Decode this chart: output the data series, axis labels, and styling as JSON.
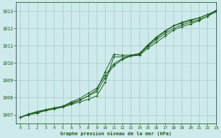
{
  "title": "Graphe pression niveau de la mer (hPa)",
  "background_color": "#ceeaea",
  "grid_color": "#aacece",
  "line_color": "#1a5c1a",
  "xlim": [
    -0.5,
    23
  ],
  "ylim": [
    1006.5,
    1013.5
  ],
  "xticks": [
    0,
    1,
    2,
    3,
    4,
    5,
    6,
    7,
    8,
    9,
    10,
    11,
    12,
    13,
    14,
    15,
    16,
    17,
    18,
    19,
    20,
    21,
    22,
    23
  ],
  "yticks": [
    1007,
    1008,
    1009,
    1010,
    1011,
    1012,
    1013
  ],
  "series": [
    [
      1006.85,
      1007.05,
      1007.15,
      1007.25,
      1007.35,
      1007.45,
      1007.6,
      1007.75,
      1007.9,
      1008.1,
      1008.9,
      1010.35,
      1010.35,
      1010.4,
      1010.45,
      1010.85,
      1011.2,
      1011.55,
      1011.9,
      1012.1,
      1012.25,
      1012.45,
      1012.7,
      1013.05
    ],
    [
      1006.85,
      1007.05,
      1007.15,
      1007.3,
      1007.4,
      1007.5,
      1007.7,
      1007.85,
      1008.1,
      1008.35,
      1009.15,
      1009.85,
      1010.2,
      1010.4,
      1010.5,
      1010.95,
      1011.35,
      1011.7,
      1012.0,
      1012.2,
      1012.35,
      1012.5,
      1012.7,
      1012.95
    ],
    [
      1006.85,
      1007.05,
      1007.2,
      1007.3,
      1007.4,
      1007.5,
      1007.75,
      1007.95,
      1008.25,
      1008.55,
      1009.3,
      1009.95,
      1010.25,
      1010.45,
      1010.55,
      1011.05,
      1011.5,
      1011.85,
      1012.15,
      1012.3,
      1012.45,
      1012.6,
      1012.8,
      1013.0
    ],
    [
      1006.85,
      1007.0,
      1007.1,
      1007.25,
      1007.35,
      1007.45,
      1007.65,
      1007.85,
      1008.1,
      1008.45,
      1009.5,
      1010.5,
      1010.45,
      1010.45,
      1010.5,
      1011.0,
      1011.45,
      1011.8,
      1012.15,
      1012.35,
      1012.5,
      1012.6,
      1012.8,
      1013.0
    ]
  ]
}
